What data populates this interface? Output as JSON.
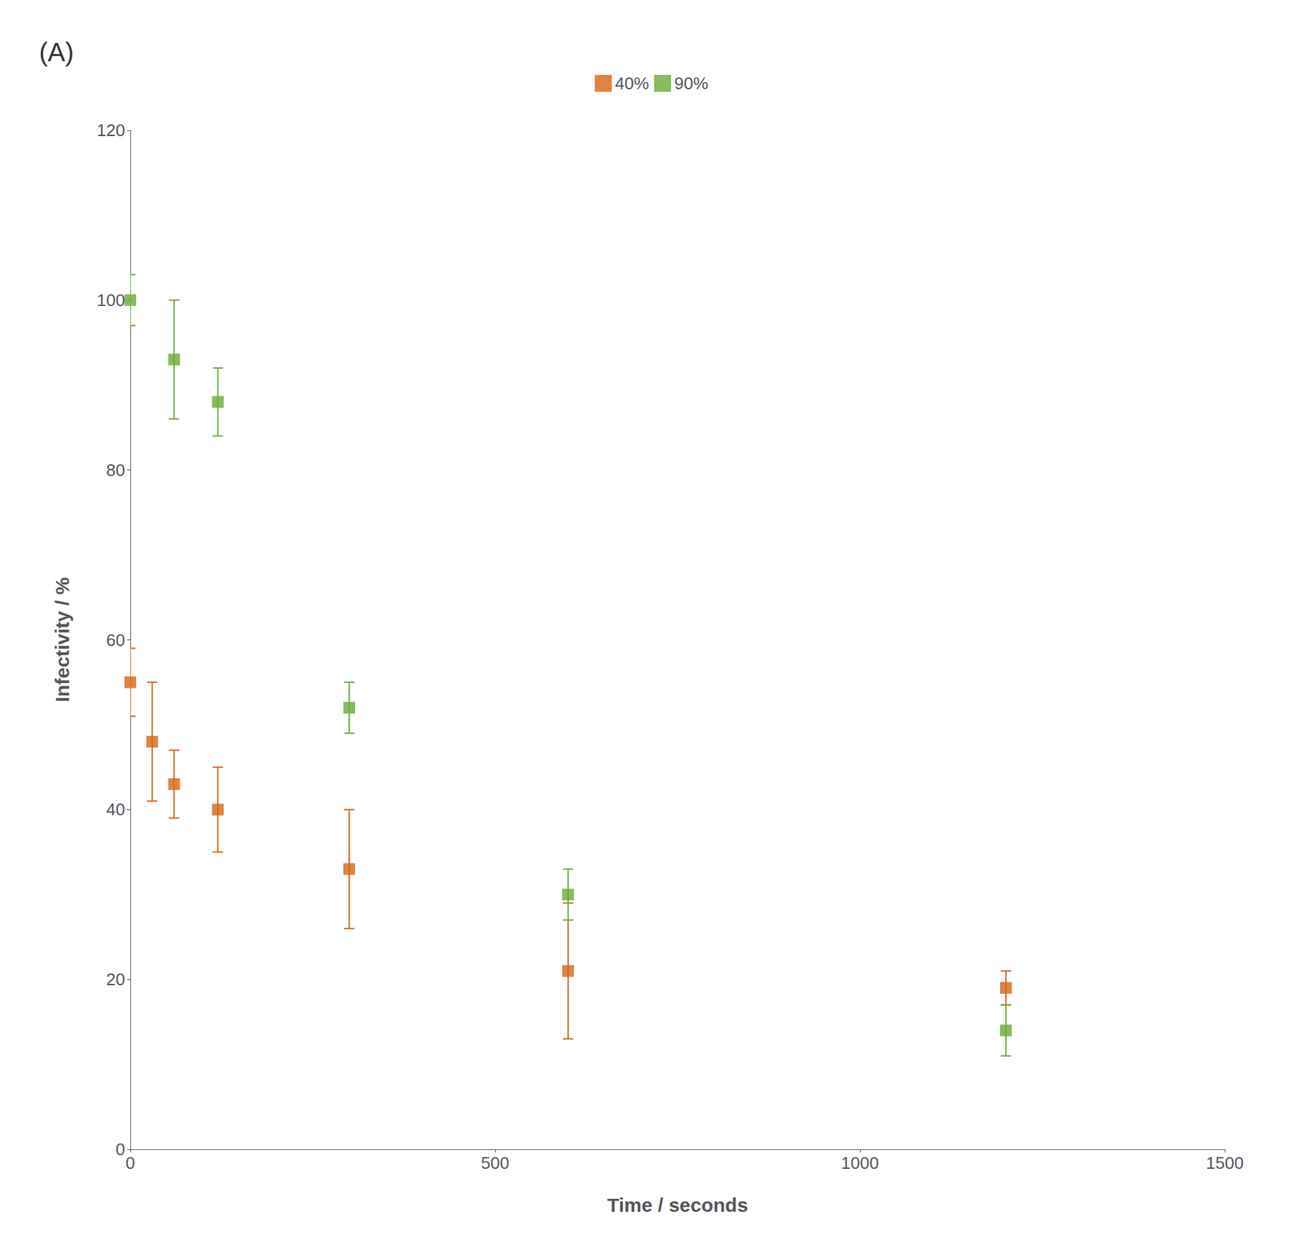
{
  "chart_data": {
    "type": "scatter",
    "xlabel": "Time / seconds",
    "ylabel": "Infectivity / %",
    "annotations": [
      "(A)"
    ],
    "marker": "square",
    "series": [
      {
        "name": "40%",
        "color": "#d4651a",
        "x": [
          0,
          30,
          60,
          120,
          300,
          600,
          1200
        ],
        "values": [
          55,
          48,
          43,
          40,
          33,
          21,
          19
        ],
        "yerr": [
          4,
          7,
          4,
          5,
          7,
          8,
          2
        ]
      },
      {
        "name": "90%",
        "color": "#6aaa3a",
        "x": [
          0,
          60,
          120,
          300,
          600,
          1200
        ],
        "values": [
          100,
          93,
          88,
          52,
          30,
          14
        ],
        "yerr": [
          3,
          7,
          4,
          3,
          3,
          3
        ]
      }
    ],
    "xlim": [
      0,
      1500
    ],
    "ylim": [
      0,
      120
    ],
    "xticks": [
      0,
      500,
      1000,
      1500
    ],
    "yticks": [
      0,
      20,
      40,
      60,
      80,
      100,
      120
    ],
    "grid": false,
    "legend": "top"
  }
}
